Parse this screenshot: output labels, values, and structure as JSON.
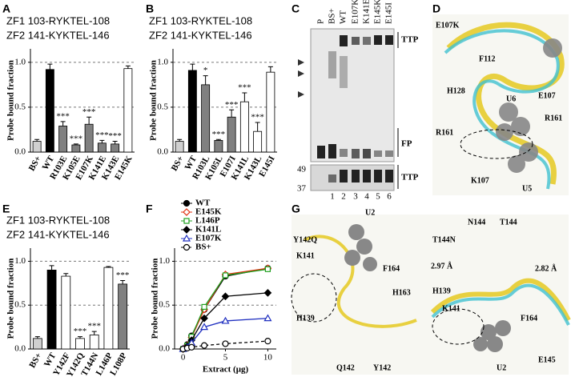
{
  "chart_data": [
    {
      "type": "bar",
      "panel": "A",
      "header": [
        "ZF1 103-RYKTEL-108",
        "ZF2 141-KYKTEL-146"
      ],
      "ylabel": "Probe bound fraction",
      "categories": [
        "BS+",
        "WT",
        "R103E",
        "K105E",
        "E107K",
        "K141E",
        "K143E",
        "E145K"
      ],
      "values": [
        0.12,
        0.92,
        0.29,
        0.08,
        0.31,
        0.1,
        0.09,
        0.93
      ],
      "errors": [
        0.02,
        0.06,
        0.05,
        0.01,
        0.08,
        0.03,
        0.03,
        0.03
      ],
      "colors": [
        "#d0d0d0",
        "#000000",
        "#808080",
        "#808080",
        "#808080",
        "#808080",
        "#808080",
        "#ffffff"
      ],
      "annotations": [
        null,
        null,
        "***",
        "***",
        "***",
        "***",
        "***",
        null
      ],
      "ylim": [
        0,
        1.15
      ],
      "yticks": [
        {
          "value": 0,
          "label": "0.0"
        },
        {
          "value": 0.5,
          "label": "0.5"
        },
        {
          "value": 1,
          "label": "1.0"
        }
      ],
      "grid": true
    },
    {
      "type": "bar",
      "panel": "B",
      "header": [
        "ZF1 103-RYKTEL-108",
        "ZF2 141-KYKTEL-146"
      ],
      "ylabel": "Probe bound fraction",
      "categories": [
        "BS+",
        "WT",
        "R103L",
        "K105L",
        "E107I",
        "K141L",
        "K143L",
        "E145I"
      ],
      "values": [
        0.12,
        0.91,
        0.75,
        0.13,
        0.39,
        0.56,
        0.23,
        0.89
      ],
      "errors": [
        0.02,
        0.07,
        0.1,
        0.01,
        0.08,
        0.1,
        0.1,
        0.06
      ],
      "colors": [
        "#d0d0d0",
        "#000000",
        "#808080",
        "#808080",
        "#808080",
        "#ffffff",
        "#ffffff",
        "#ffffff"
      ],
      "annotations": [
        null,
        null,
        "*",
        "***",
        "***",
        "***",
        "***",
        null
      ],
      "ylim": [
        0,
        1.15
      ],
      "yticks": [
        {
          "value": 0,
          "label": "0.0"
        },
        {
          "value": 0.5,
          "label": "0.5"
        },
        {
          "value": 1,
          "label": "1.0"
        }
      ],
      "grid": true
    },
    {
      "type": "bar",
      "panel": "E",
      "header": [
        "ZF1 103-RYKTEL-108",
        "ZF2 141-KYKTEL-146"
      ],
      "ylabel": "Probe bound fraction",
      "categories": [
        "BS+",
        "WT",
        "Y142F",
        "Y142Q",
        "T144N",
        "L146P",
        "L108P"
      ],
      "values": [
        0.12,
        0.9,
        0.83,
        0.12,
        0.16,
        0.93,
        0.74
      ],
      "errors": [
        0.02,
        0.05,
        0.03,
        0.02,
        0.04,
        0.01,
        0.04
      ],
      "colors": [
        "#d0d0d0",
        "#000000",
        "#ffffff",
        "#ffffff",
        "#ffffff",
        "#ffffff",
        "#808080"
      ],
      "annotations": [
        null,
        null,
        null,
        "***",
        "***",
        null,
        "***"
      ],
      "ylim": [
        0,
        1.15
      ],
      "yticks": [
        {
          "value": 0,
          "label": "0.0"
        },
        {
          "value": 0.5,
          "label": "0.5"
        },
        {
          "value": 1,
          "label": "1.0"
        }
      ],
      "grid": true
    },
    {
      "type": "line",
      "panel": "F",
      "ylabel": "Probe bound fraction",
      "xlabel": "Extract (μg)",
      "x": [
        0,
        0.5,
        1,
        2.5,
        5,
        10
      ],
      "series": [
        {
          "name": "WT",
          "color": "#000000",
          "marker": "circle",
          "filled": true,
          "dash": false,
          "values": [
            0,
            0.05,
            0.15,
            0.45,
            0.83,
            0.92
          ]
        },
        {
          "name": "E145K",
          "color": "#e03010",
          "marker": "diamond",
          "filled": false,
          "dash": false,
          "values": [
            0,
            0.04,
            0.13,
            0.45,
            0.85,
            0.92
          ]
        },
        {
          "name": "L146P",
          "color": "#20a020",
          "marker": "square",
          "filled": false,
          "dash": false,
          "values": [
            0,
            0.04,
            0.14,
            0.48,
            0.84,
            0.91
          ]
        },
        {
          "name": "K141L",
          "color": "#000000",
          "marker": "diamond",
          "filled": true,
          "dash": false,
          "values": [
            0,
            0.03,
            0.1,
            0.35,
            0.6,
            0.64
          ]
        },
        {
          "name": "E107K",
          "color": "#2030c0",
          "marker": "triangle",
          "filled": false,
          "dash": false,
          "values": [
            0,
            0.02,
            0.07,
            0.25,
            0.32,
            0.35
          ]
        },
        {
          "name": "BS+",
          "color": "#000000",
          "marker": "circle",
          "filled": false,
          "dash": true,
          "values": [
            0,
            0.01,
            0.02,
            0.04,
            0.06,
            0.09
          ]
        }
      ],
      "xlim": [
        -1,
        11
      ],
      "xticks": [
        0,
        5,
        10
      ],
      "ylim": [
        0,
        1.15
      ],
      "yticks": [
        {
          "value": 0,
          "label": "0.0"
        },
        {
          "value": 0.5,
          "label": "0.5"
        },
        {
          "value": 1,
          "label": "1.0"
        }
      ],
      "grid": true
    }
  ],
  "gel": {
    "panel": "C",
    "lanes": [
      "P",
      "BS+",
      "WT",
      "E107K",
      "K141E",
      "E145K",
      "E145I"
    ],
    "lane_numbers": [
      "1",
      "2",
      "3",
      "4",
      "5",
      "6"
    ],
    "labels": [
      "TTP",
      "FP",
      "TTP"
    ],
    "markers": [
      "49",
      "37"
    ]
  },
  "structure_d": {
    "panel": "D",
    "title": "E107K",
    "labels": [
      "F112",
      "H128",
      "U6",
      "E107",
      "R161",
      "R161",
      "K107",
      "U5"
    ]
  },
  "structure_g": {
    "panel": "G",
    "left_title": "Y142Q",
    "right_title": "T144N",
    "left_labels": [
      "U2",
      "K141",
      "F164",
      "H163",
      "H139",
      "Q142",
      "Y142"
    ],
    "right_labels": [
      "N144",
      "T144",
      "2.97 Å",
      "2.82 Å",
      "H139",
      "K141",
      "F164",
      "U2",
      "E145"
    ]
  }
}
